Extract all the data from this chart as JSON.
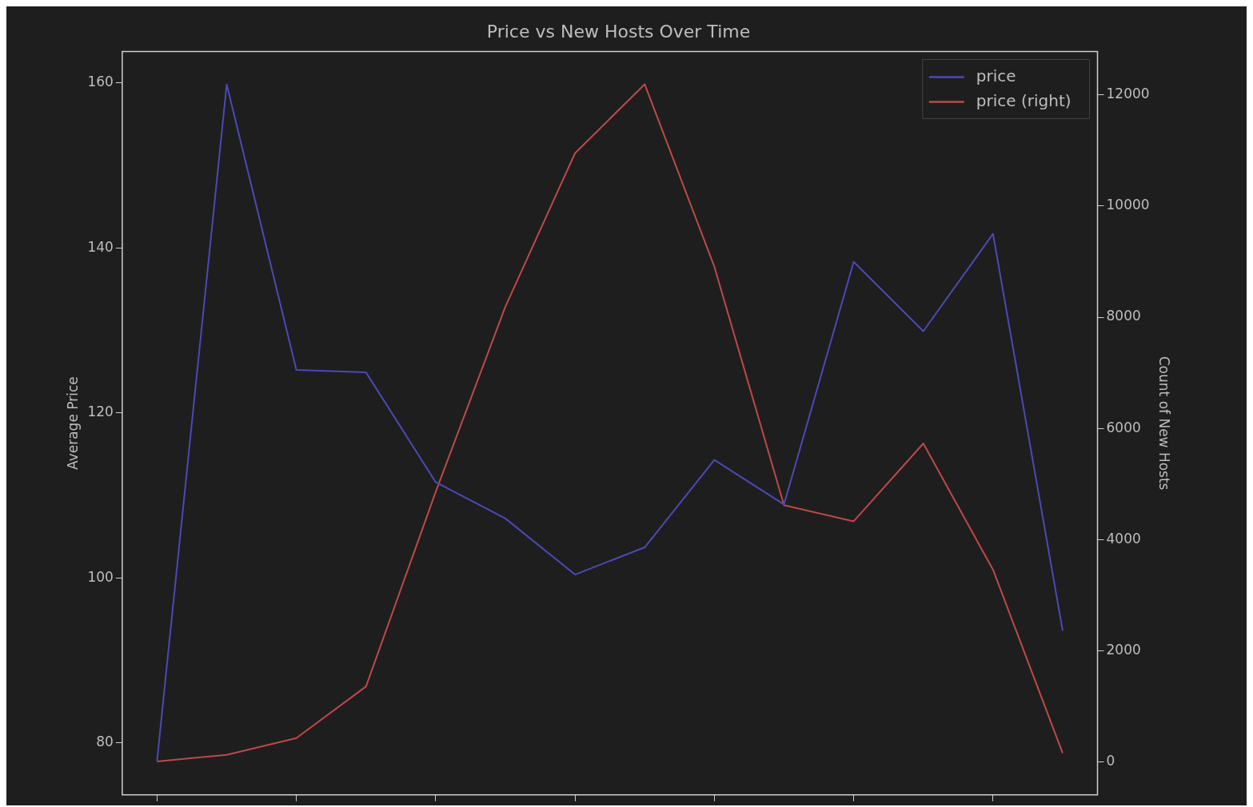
{
  "chart_data": {
    "type": "line",
    "title": "Price vs New Hosts Over Time",
    "ylabel": "Average Price",
    "y2label": "Count of New Hosts",
    "categories": [
      null,
      null,
      null,
      null,
      null,
      null,
      null,
      null,
      null,
      null,
      null,
      null,
      null,
      null
    ],
    "series": [
      {
        "name": "price",
        "color": "#4a4ab8",
        "values": [
          77.8,
          159.8,
          125.2,
          124.9,
          111.6,
          107.2,
          100.4,
          103.7,
          114.3,
          108.9,
          138.3,
          129.9,
          141.7,
          93.6
        ]
      },
      {
        "name": "price (right)",
        "color": "#c04848",
        "axis": "y2",
        "values": [
          10,
          130,
          430,
          1360,
          4860,
          8190,
          10950,
          12190,
          8910,
          4620,
          4330,
          5730,
          3460,
          160
        ]
      }
    ],
    "ylim": [
      73.7,
      163.8
    ],
    "yticks": [
      80,
      100,
      120,
      140,
      160
    ],
    "y2lim": [
      -590,
      12780
    ],
    "y2ticks": [
      0,
      2000,
      4000,
      6000,
      8000,
      10000,
      12000
    ],
    "legend": "top right",
    "grid": false,
    "tick_labels": "y"
  }
}
